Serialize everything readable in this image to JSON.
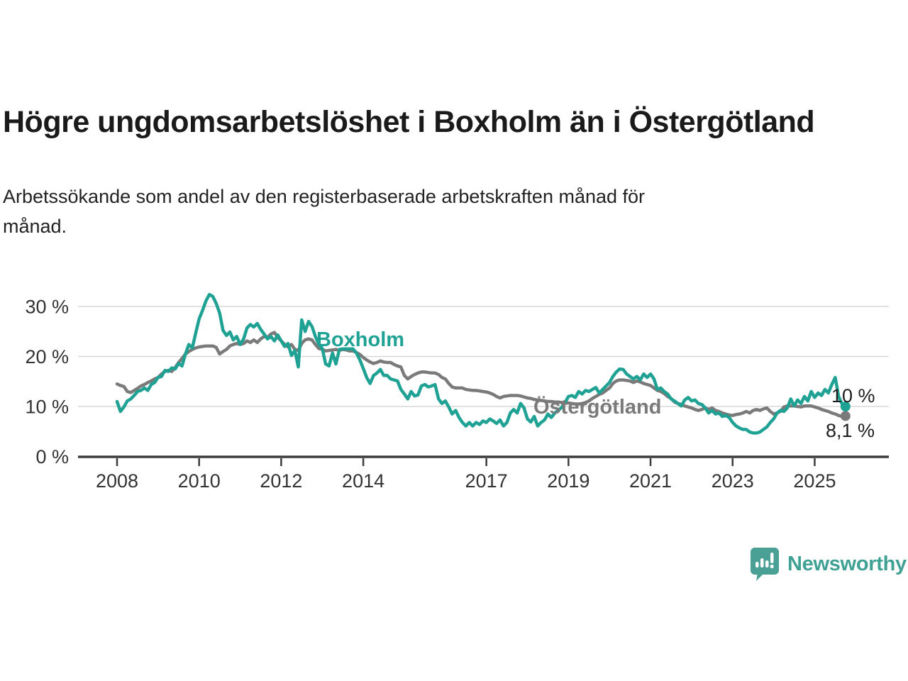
{
  "header": {
    "title": "Högre ungdomsarbetslöshet i Boxholm än i Östergötland",
    "subtitle_line1": "Arbetssökande som andel av den registerbaserade arbetskraften månad för",
    "subtitle_line2": "månad."
  },
  "footer": {
    "brand": "Newsworthy",
    "brand_color": "#3fa193"
  },
  "colors": {
    "boxholm": "#1fa294",
    "ostergotland": "#7a7a7a",
    "grid": "#d8d8d8",
    "axis": "#3c3c3c",
    "tick_text": "#333333",
    "end_label_text": "#1d1d1d"
  },
  "chart_data": {
    "type": "line",
    "title": "Högre ungdomsarbetslöshet i Boxholm än i Östergötland",
    "subtitle": "Arbetssökande som andel av den registerbaserade arbetskraften månad för månad.",
    "x_unit": "month",
    "x_start": "2008-01",
    "x_end": "2025-10",
    "x_tick_years": [
      2008,
      2010,
      2012,
      2014,
      2017,
      2019,
      2021,
      2023,
      2025
    ],
    "x_tick_labels": [
      "2008",
      "2010",
      "2012",
      "2014",
      "2017",
      "2019",
      "2021",
      "2023",
      "2025"
    ],
    "y_ticks": [
      0,
      10,
      20,
      30
    ],
    "y_tick_labels": [
      "0 %",
      "10 %",
      "20 %",
      "30 %"
    ],
    "ylim": [
      0,
      33
    ],
    "grid": true,
    "legend_position": "inline-labels",
    "series": [
      {
        "name": "Östergötland",
        "label_text": "Östergötland",
        "end_label": "8,1 %",
        "end_value": 8.1,
        "color": "#7a7a7a",
        "values": [
          14.5,
          14.2,
          14.0,
          13.0,
          12.8,
          13.2,
          13.6,
          14.1,
          14.4,
          14.8,
          15.1,
          15.5,
          15.8,
          16.5,
          17.0,
          17.2,
          17.0,
          17.8,
          18.8,
          19.6,
          20.5,
          21.0,
          21.4,
          21.7,
          21.9,
          22.0,
          22.1,
          22.1,
          22.1,
          21.8,
          20.5,
          21.0,
          21.4,
          22.1,
          22.4,
          22.6,
          22.4,
          22.6,
          23.1,
          22.8,
          23.3,
          22.8,
          23.5,
          24.0,
          23.8,
          24.5,
          24.8,
          23.8,
          23.1,
          22.4,
          21.9,
          22.4,
          21.4,
          21.2,
          22.6,
          23.3,
          23.5,
          23.3,
          22.4,
          21.6,
          21.4,
          21.1,
          21.2,
          21.3,
          21.4,
          21.2,
          21.4,
          21.3,
          21.1,
          21.1,
          20.8,
          20.4,
          19.8,
          19.3,
          18.9,
          18.6,
          18.8,
          19.1,
          18.9,
          18.8,
          18.8,
          18.4,
          18.1,
          17.9,
          16.2,
          15.5,
          16.0,
          16.4,
          16.7,
          16.9,
          16.9,
          16.8,
          16.7,
          16.7,
          16.4,
          15.8,
          15.5,
          14.6,
          13.9,
          13.7,
          13.7,
          13.7,
          13.4,
          13.3,
          13.2,
          13.2,
          13.1,
          13.0,
          12.9,
          12.7,
          12.4,
          12.0,
          11.7,
          12.0,
          12.1,
          12.2,
          12.2,
          12.2,
          12.1,
          11.9,
          11.7,
          11.6,
          11.4,
          11.3,
          11.2,
          11.1,
          11.0,
          11.0,
          10.9,
          10.9,
          10.8,
          10.8,
          10.7,
          10.6,
          10.5,
          10.5,
          10.6,
          10.8,
          11.1,
          11.6,
          12.0,
          12.4,
          12.7,
          13.2,
          13.7,
          14.6,
          15.1,
          15.3,
          15.3,
          15.2,
          15.1,
          14.8,
          15.1,
          14.9,
          14.6,
          14.4,
          14.2,
          13.7,
          13.2,
          13.0,
          12.6,
          12.0,
          11.6,
          10.9,
          10.6,
          10.4,
          10.1,
          9.9,
          9.7,
          9.4,
          9.2,
          9.4,
          9.7,
          9.4,
          9.7,
          9.2,
          9.0,
          8.7,
          8.5,
          8.3,
          8.2,
          8.4,
          8.5,
          8.7,
          9.0,
          8.7,
          9.2,
          9.4,
          9.2,
          9.5,
          9.7,
          9.0,
          8.5,
          8.7,
          9.0,
          9.9,
          10.1,
          10.1,
          10.1,
          10.0,
          9.9,
          10.1,
          10.1,
          10.1,
          9.9,
          9.7,
          9.4,
          9.2,
          9.0,
          8.7,
          8.5,
          8.2,
          8.0,
          8.1
        ]
      },
      {
        "name": "Boxholm",
        "label_text": "Boxholm",
        "end_label": "10 %",
        "end_value": 10.0,
        "color": "#1fa294",
        "values": [
          11.0,
          9.0,
          9.9,
          11.1,
          11.5,
          12.2,
          13.0,
          13.2,
          13.7,
          13.2,
          14.4,
          14.8,
          15.8,
          16.0,
          17.2,
          17.0,
          17.7,
          17.5,
          18.6,
          18.1,
          20.5,
          22.4,
          21.7,
          24.7,
          27.5,
          29.2,
          31.1,
          32.4,
          32.0,
          30.6,
          28.7,
          25.2,
          24.2,
          24.9,
          23.3,
          24.0,
          22.4,
          23.5,
          25.7,
          26.4,
          25.9,
          26.6,
          25.4,
          24.5,
          23.5,
          24.0,
          23.1,
          24.3,
          23.1,
          22.0,
          22.6,
          20.2,
          21.2,
          17.9,
          27.3,
          25.0,
          27.0,
          26.0,
          24.0,
          22.5,
          21.6,
          18.5,
          18.1,
          20.7,
          18.5,
          21.4,
          21.5,
          21.5,
          21.5,
          21.5,
          20.7,
          19.3,
          17.6,
          15.8,
          14.6,
          16.2,
          16.7,
          17.4,
          16.2,
          16.2,
          15.5,
          15.3,
          15.1,
          13.4,
          12.5,
          11.5,
          13.0,
          12.1,
          12.3,
          14.1,
          14.4,
          13.9,
          14.1,
          14.4,
          11.5,
          10.6,
          11.1,
          9.9,
          8.5,
          9.2,
          7.8,
          6.8,
          6.1,
          6.8,
          6.1,
          6.8,
          6.4,
          7.1,
          6.8,
          7.5,
          7.1,
          6.6,
          7.3,
          6.1,
          6.8,
          8.7,
          9.4,
          8.7,
          10.6,
          9.7,
          7.5,
          6.9,
          8.0,
          6.1,
          6.8,
          7.3,
          8.5,
          7.8,
          8.7,
          9.2,
          9.8,
          10.8,
          12.0,
          12.2,
          11.8,
          13.0,
          12.5,
          13.2,
          13.0,
          13.4,
          13.8,
          12.7,
          13.4,
          14.1,
          14.8,
          16.0,
          16.9,
          17.5,
          17.4,
          16.5,
          16.0,
          15.5,
          16.0,
          15.3,
          16.5,
          15.8,
          16.5,
          15.5,
          13.4,
          13.7,
          13.0,
          12.5,
          11.5,
          11.1,
          10.6,
          10.1,
          11.3,
          11.8,
          11.1,
          11.3,
          10.6,
          10.4,
          9.7,
          8.7,
          9.2,
          8.5,
          8.7,
          8.0,
          8.2,
          7.8,
          6.8,
          6.1,
          5.7,
          5.4,
          5.4,
          4.9,
          4.7,
          4.7,
          4.9,
          5.4,
          5.9,
          6.8,
          7.5,
          8.7,
          9.2,
          9.0,
          9.7,
          11.5,
          10.1,
          11.3,
          10.6,
          12.0,
          11.1,
          13.0,
          11.8,
          12.7,
          12.2,
          13.4,
          12.7,
          14.4,
          15.8,
          12.0,
          10.5,
          10.0
        ]
      }
    ]
  }
}
